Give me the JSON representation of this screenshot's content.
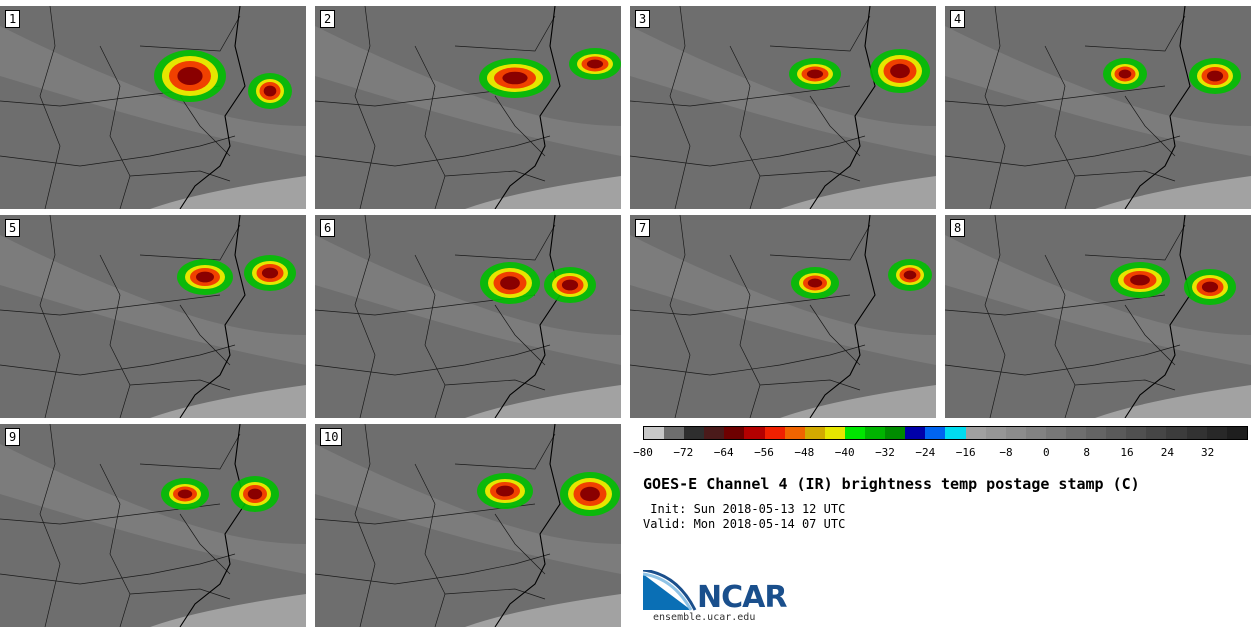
{
  "panels": [
    {
      "label": "1"
    },
    {
      "label": "2"
    },
    {
      "label": "3"
    },
    {
      "label": "4"
    },
    {
      "label": "5"
    },
    {
      "label": "6"
    },
    {
      "label": "7"
    },
    {
      "label": "8"
    },
    {
      "label": "9"
    },
    {
      "label": "10"
    }
  ],
  "colorbar": {
    "colors": [
      "#c8c8c8",
      "#6e6e6e",
      "#2e2e2e",
      "#4a1a1a",
      "#6e0000",
      "#b40000",
      "#f02000",
      "#f06400",
      "#d2aa00",
      "#e6e600",
      "#00e600",
      "#00b400",
      "#008c00",
      "#0000aa",
      "#0064f0",
      "#00dcf0",
      "#a0a0a0",
      "#969696",
      "#8c8c8c",
      "#828282",
      "#787878",
      "#6e6e6e",
      "#646464",
      "#5a5a5a",
      "#505050",
      "#464646",
      "#3c3c3c",
      "#323232",
      "#282828",
      "#1e1e1e"
    ],
    "ticks": [
      "−80",
      "−72",
      "−64",
      "−56",
      "−48",
      "−40",
      "−32",
      "−24",
      "−16",
      "−8",
      "0",
      "8",
      "16",
      "24",
      "32"
    ]
  },
  "title": "GOES-E Channel 4 (IR) brightness temp postage stamp (C)",
  "init": " Init: Sun 2018-05-13 12 UTC",
  "valid": "Valid: Mon 2018-05-14 07 UTC",
  "logo": {
    "name": "NCAR",
    "url": "ensemble.ucar.edu"
  }
}
